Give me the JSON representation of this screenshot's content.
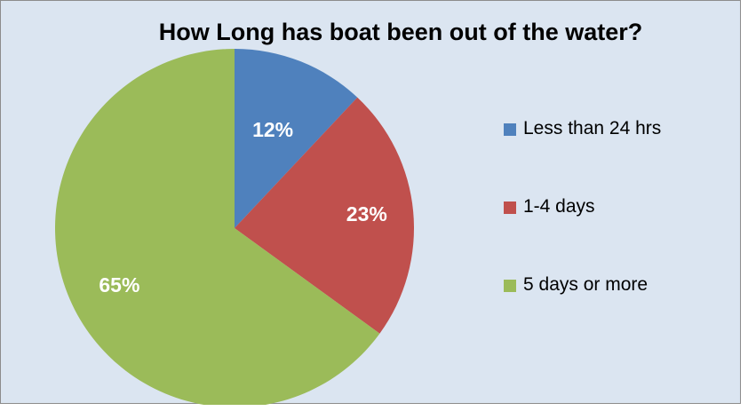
{
  "chart_data": {
    "type": "pie",
    "title": "How Long has boat been out of the water?",
    "categories": [
      "Less than 24 hrs",
      "1-4 days",
      "5 days or more"
    ],
    "values": [
      12,
      23,
      65
    ],
    "value_labels": [
      "12%",
      "23%",
      "65%"
    ],
    "colors": [
      "#4f81bd",
      "#c0504d",
      "#9bbb59"
    ],
    "legend_position": "right",
    "start_angle": "12 o'clock, clockwise"
  },
  "style": {
    "plot_background": "#dbe5f1",
    "border_color": "#8c8c8c",
    "label_color": "#ffffff"
  }
}
